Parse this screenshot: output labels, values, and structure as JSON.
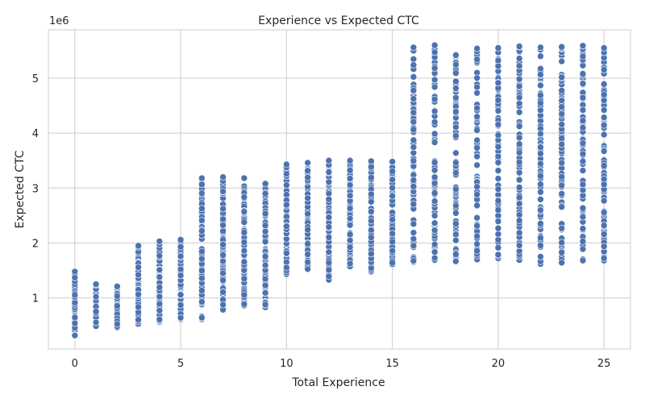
{
  "chart_data": {
    "type": "scatter",
    "title": "Experience vs Expected CTC",
    "xlabel": "Total Experience",
    "ylabel": "Expected CTC",
    "y_offset_label": "1e6",
    "xlim": [
      -1.25,
      26.25
    ],
    "ylim": [
      70000,
      5880000
    ],
    "xticks": [
      0,
      5,
      10,
      15,
      20,
      25
    ],
    "yticks": [
      1000000,
      2000000,
      3000000,
      4000000,
      5000000
    ],
    "ytick_labels": [
      "1",
      "2",
      "3",
      "4",
      "5"
    ],
    "grid": true,
    "marker_color": "#4c72b0",
    "series": [
      {
        "points": [
          {
            "x": 0,
            "min": 300000,
            "max": 1480000
          },
          {
            "x": 1,
            "min": 480000,
            "max": 1250000
          },
          {
            "x": 2,
            "min": 460000,
            "max": 1210000
          },
          {
            "x": 3,
            "min": 520000,
            "max": 1950000
          },
          {
            "x": 4,
            "min": 560000,
            "max": 2030000
          },
          {
            "x": 5,
            "min": 600000,
            "max": 2060000
          },
          {
            "x": 6,
            "min": 610000,
            "max": 3180000
          },
          {
            "x": 7,
            "min": 780000,
            "max": 3200000
          },
          {
            "x": 8,
            "min": 860000,
            "max": 3180000
          },
          {
            "x": 9,
            "min": 830000,
            "max": 3080000
          },
          {
            "x": 10,
            "min": 1430000,
            "max": 3430000
          },
          {
            "x": 11,
            "min": 1520000,
            "max": 3460000
          },
          {
            "x": 12,
            "min": 1330000,
            "max": 3500000
          },
          {
            "x": 13,
            "min": 1560000,
            "max": 3500000
          },
          {
            "x": 14,
            "min": 1480000,
            "max": 3490000
          },
          {
            "x": 15,
            "min": 1610000,
            "max": 3480000
          },
          {
            "x": 16,
            "min": 1650000,
            "max": 5560000
          },
          {
            "x": 17,
            "min": 1680000,
            "max": 5600000
          },
          {
            "x": 18,
            "min": 1650000,
            "max": 5420000
          },
          {
            "x": 19,
            "min": 1700000,
            "max": 5540000
          },
          {
            "x": 20,
            "min": 1720000,
            "max": 5550000
          },
          {
            "x": 21,
            "min": 1690000,
            "max": 5580000
          },
          {
            "x": 22,
            "min": 1610000,
            "max": 5560000
          },
          {
            "x": 23,
            "min": 1640000,
            "max": 5570000
          },
          {
            "x": 24,
            "min": 1670000,
            "max": 5590000
          },
          {
            "x": 25,
            "min": 1680000,
            "max": 5550000
          }
        ]
      }
    ]
  }
}
